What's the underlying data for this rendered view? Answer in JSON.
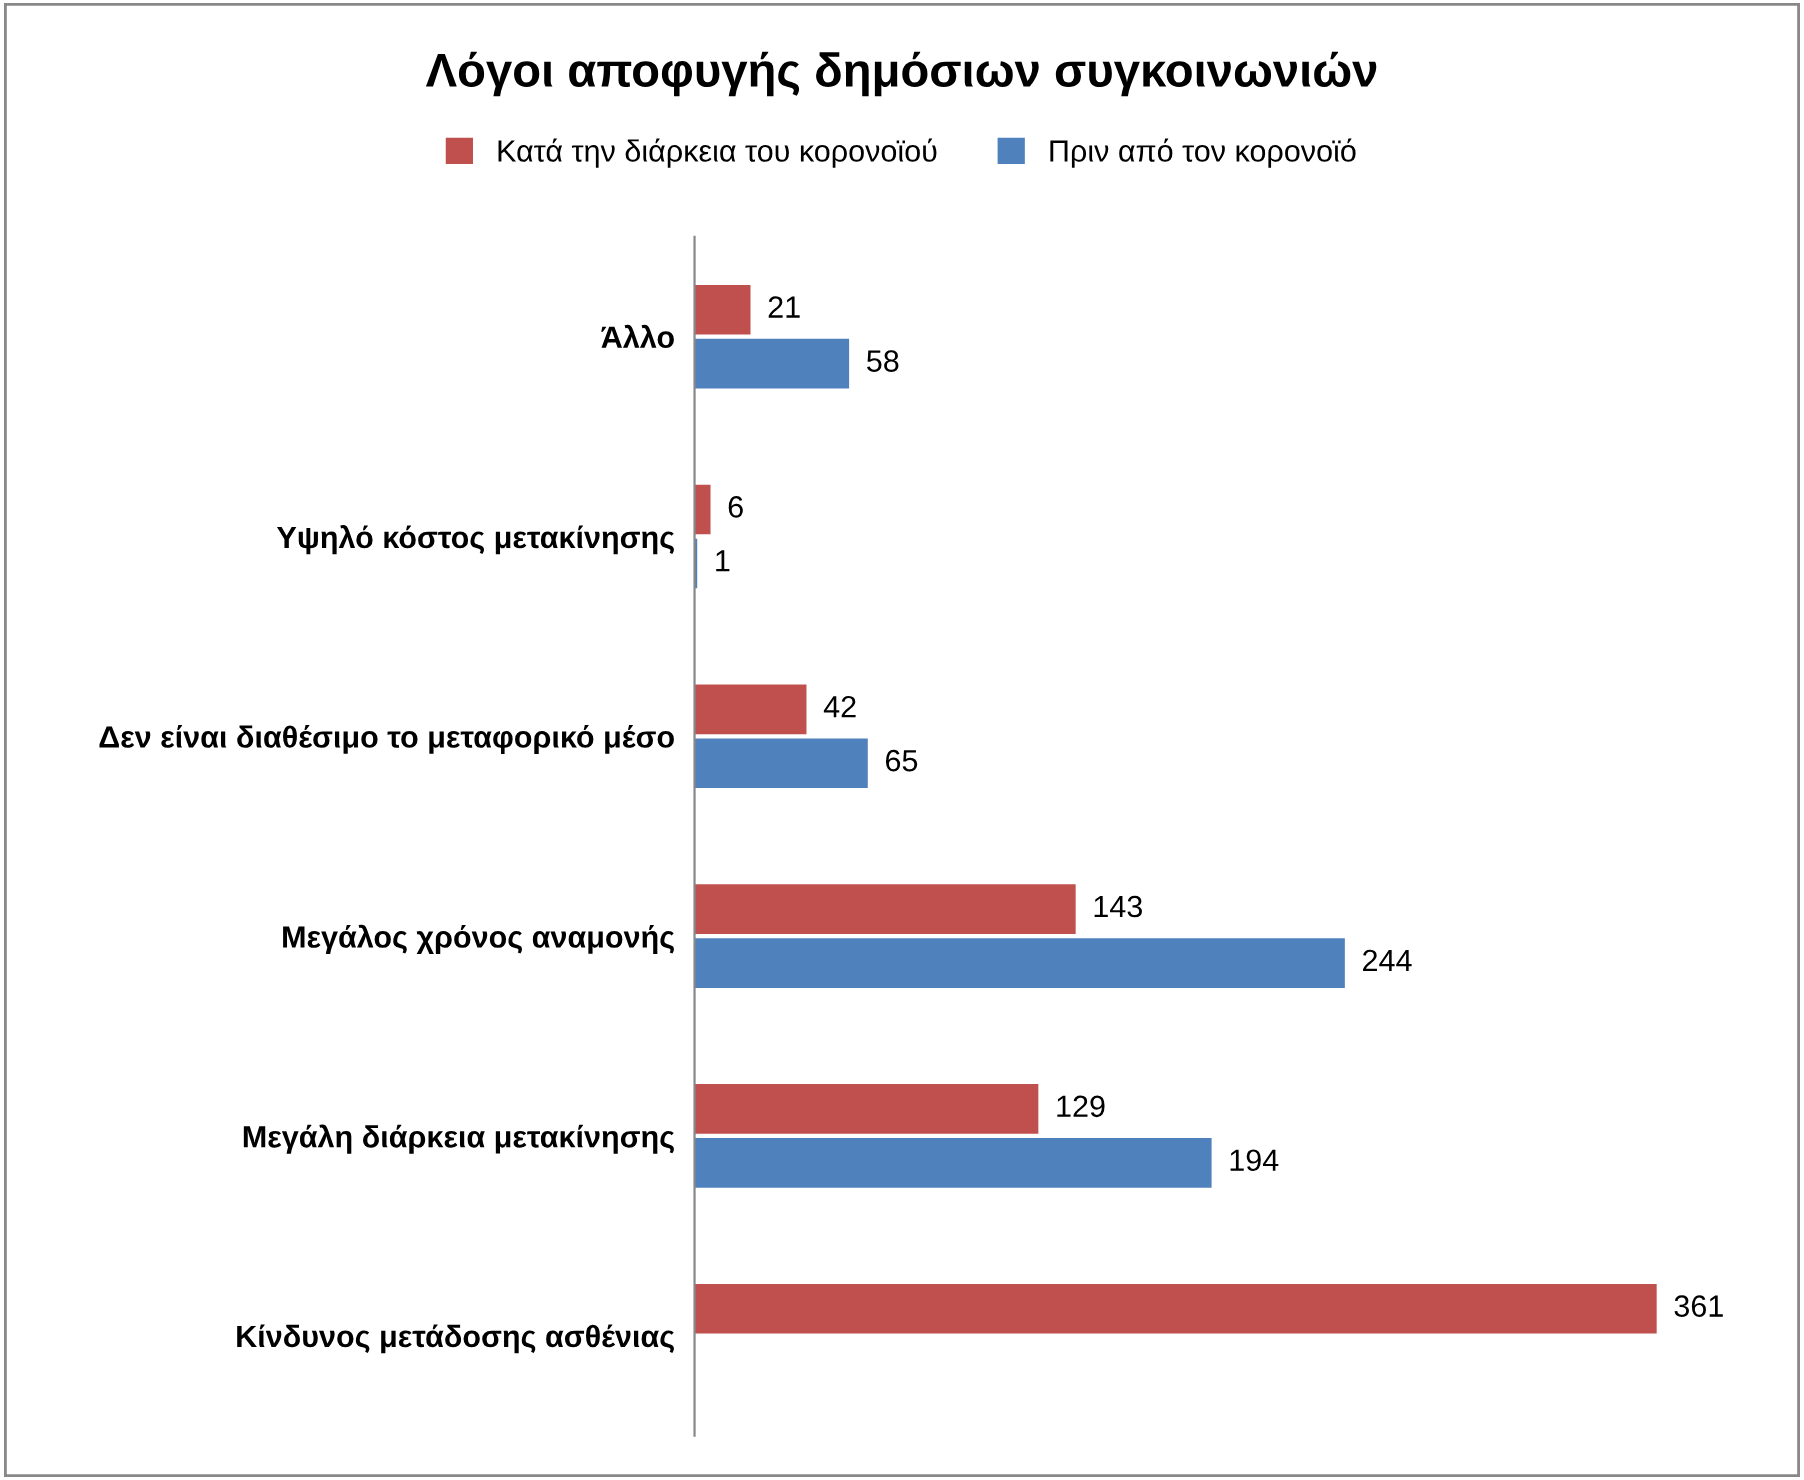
{
  "chart_data": {
    "type": "bar",
    "orientation": "horizontal",
    "title": "Λόγοι αποφυγής δημόσιων συγκοινωνιών",
    "categories": [
      "Άλλο",
      "Υψηλό κόστος μετακίνησης",
      "Δεν είναι διαθέσιμο το μεταφορικό μέσο",
      "Μεγάλος χρόνος αναμονής",
      "Μεγάλη διάρκεια μετακίνησης",
      "Κίνδυνος μετάδοσης ασθένιας"
    ],
    "series": [
      {
        "name": "Κατά την διάρκεια του κορονοϊού",
        "color": "#c0504d",
        "values": [
          21,
          6,
          42,
          143,
          129,
          361
        ]
      },
      {
        "name": "Πριν από τον κορονοϊό",
        "color": "#4f81bd",
        "values": [
          58,
          1,
          65,
          244,
          194,
          null
        ]
      }
    ],
    "data_labels": true,
    "legend": "top",
    "grid": false,
    "tick_labels": "y"
  }
}
